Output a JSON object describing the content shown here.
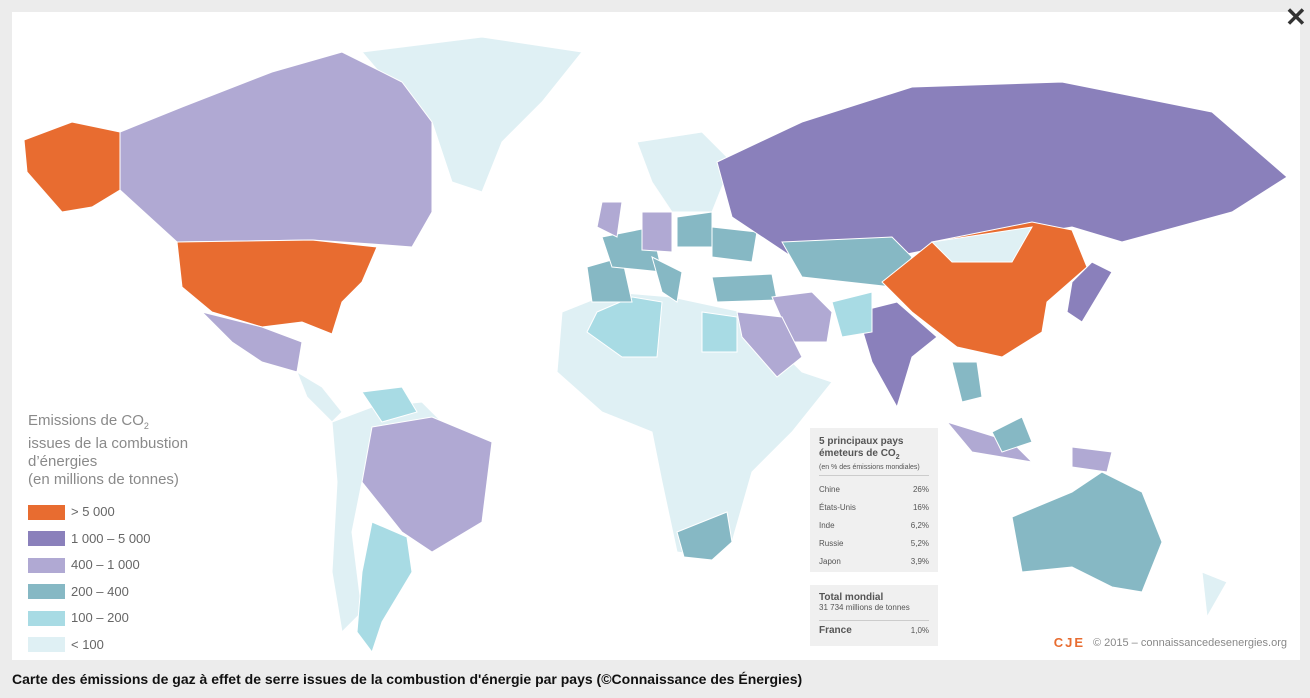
{
  "legend": {
    "title_main": "Emissions de CO",
    "title_sub": "2",
    "title_lines": [
      "issues de la combustion",
      "d’énergies",
      "(en millions de tonnes)"
    ],
    "items": [
      {
        "label": "> 5 000",
        "color": "#e86c30"
      },
      {
        "label": "1 000 – 5 000",
        "color": "#8a80bb"
      },
      {
        "label": "400 – 1 000",
        "color": "#b0a9d3"
      },
      {
        "label": "200 – 400",
        "color": "#86b8c4"
      },
      {
        "label": "100 – 200",
        "color": "#a8dbe4"
      },
      {
        "label": "< 100",
        "color": "#dff0f4"
      }
    ]
  },
  "top5": {
    "title_main": "5 principaux pays",
    "title_line2": "émeteurs de CO",
    "title_sub": "2",
    "note": "(en % des émissions mondiales)",
    "rows": [
      [
        "Chine",
        "26%"
      ],
      [
        "États-Unis",
        "16%"
      ],
      [
        "Inde",
        "6,2%"
      ],
      [
        "Russie",
        "5,2%"
      ],
      [
        "Japon",
        "3,9%"
      ]
    ],
    "total_label": "Total mondial",
    "total_value": "31 734 millions de tonnes",
    "france": [
      "France",
      "1,0%"
    ]
  },
  "logo": "CJE",
  "copyright": "© 2015 – connaissancedesenergies.org",
  "caption": "Carte des émissions de gaz à effet de serre issues de la combustion d'énergie par pays (©Connaissance des Énergies)"
}
